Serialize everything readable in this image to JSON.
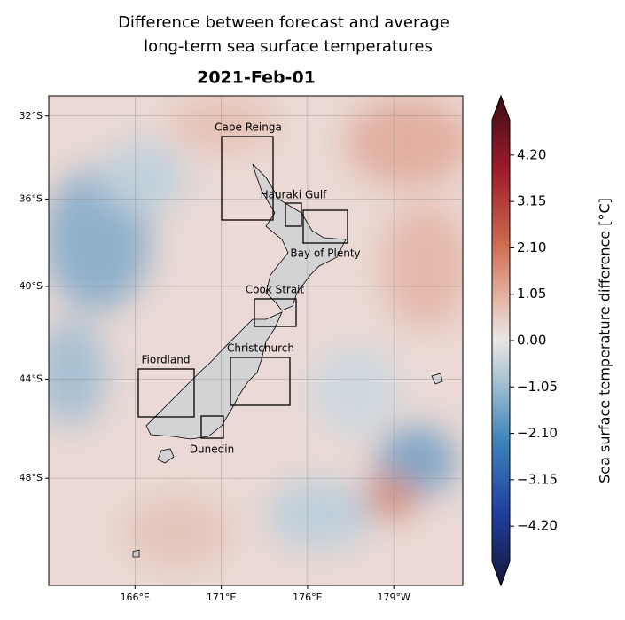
{
  "title": [
    "Difference between forecast and average",
    "long-term sea surface temperatures"
  ],
  "subtitle": "2021-Feb-01",
  "map": {
    "lonlim": [
      161,
      185
    ],
    "latlim": [
      -52,
      -31
    ],
    "lon_ticks": [
      {
        "value": 166,
        "label": "166°E"
      },
      {
        "value": 171,
        "label": "171°E"
      },
      {
        "value": 176,
        "label": "176°E"
      },
      {
        "value": 181,
        "label": "179°W"
      }
    ],
    "lat_ticks": [
      {
        "value": -32,
        "label": "32°S"
      },
      {
        "value": -36,
        "label": "36°S"
      },
      {
        "value": -40,
        "label": "40°S"
      },
      {
        "value": -44,
        "label": "44°S"
      },
      {
        "value": -48,
        "label": "48°S"
      }
    ],
    "regions": [
      {
        "label": "Cape Reinga"
      },
      {
        "label": "Hauraki Gulf"
      },
      {
        "label": "Bay of Plenty"
      },
      {
        "label": "Cook Strait"
      },
      {
        "label": "Christchurch"
      },
      {
        "label": "Fiordland"
      },
      {
        "label": "Dunedin"
      }
    ]
  },
  "colorbar": {
    "label": "Sea surface temperature difference [°C]",
    "lim": [
      -5,
      5
    ],
    "ticks": [
      {
        "value": 4.2,
        "label": "4.20"
      },
      {
        "value": 3.15,
        "label": "3.15"
      },
      {
        "value": 2.1,
        "label": "2.10"
      },
      {
        "value": 1.05,
        "label": "1.05"
      },
      {
        "value": 0,
        "label": "0.00"
      },
      {
        "value": -1.05,
        "label": "−1.05"
      },
      {
        "value": -2.1,
        "label": "−2.10"
      },
      {
        "value": -3.15,
        "label": "−3.15"
      },
      {
        "value": -4.2,
        "label": "−4.20"
      }
    ]
  }
}
